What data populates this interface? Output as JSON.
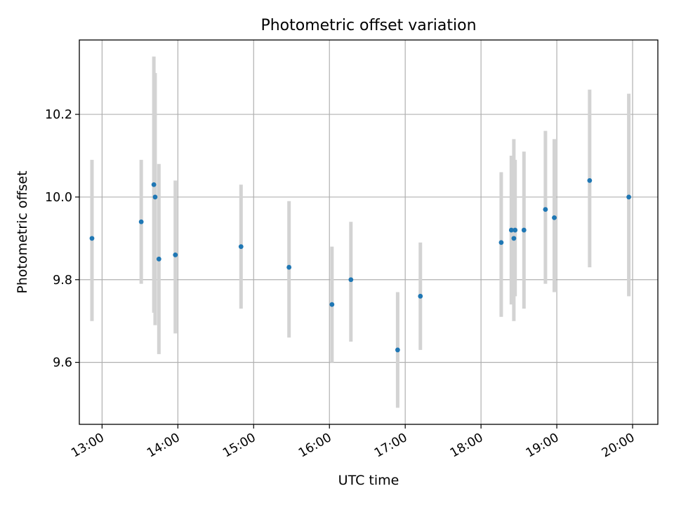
{
  "chart_data": {
    "type": "scatter",
    "title": "Photometric offset variation",
    "xlabel": "UTC time",
    "ylabel": "Photometric offset",
    "x_axis_type": "time",
    "xlim": [
      "12:42",
      "20:20"
    ],
    "ylim": [
      9.45,
      10.38
    ],
    "xticks": [
      "13:00",
      "14:00",
      "15:00",
      "16:00",
      "17:00",
      "18:00",
      "19:00",
      "20:00"
    ],
    "yticks": [
      "9.6",
      "9.8",
      "10.0",
      "10.2"
    ],
    "grid": true,
    "legend": "none",
    "point_color": "#1f77b4",
    "errorbar_color": "#d3d3d3",
    "points": [
      {
        "x": "12:52",
        "y": 9.9,
        "ylow": 9.7,
        "yhigh": 10.09
      },
      {
        "x": "13:31",
        "y": 9.94,
        "ylow": 9.79,
        "yhigh": 10.09
      },
      {
        "x": "13:41",
        "y": 10.03,
        "ylow": 9.72,
        "yhigh": 10.34
      },
      {
        "x": "13:42",
        "y": 10.0,
        "ylow": 9.69,
        "yhigh": 10.3
      },
      {
        "x": "13:45",
        "y": 9.85,
        "ylow": 9.62,
        "yhigh": 10.08
      },
      {
        "x": "13:58",
        "y": 9.86,
        "ylow": 9.67,
        "yhigh": 10.04
      },
      {
        "x": "14:50",
        "y": 9.88,
        "ylow": 9.73,
        "yhigh": 10.03
      },
      {
        "x": "15:28",
        "y": 9.83,
        "ylow": 9.66,
        "yhigh": 9.99
      },
      {
        "x": "16:02",
        "y": 9.74,
        "ylow": 9.6,
        "yhigh": 9.88
      },
      {
        "x": "16:17",
        "y": 9.8,
        "ylow": 9.65,
        "yhigh": 9.94
      },
      {
        "x": "16:54",
        "y": 9.63,
        "ylow": 9.49,
        "yhigh": 9.77
      },
      {
        "x": "17:12",
        "y": 9.76,
        "ylow": 9.63,
        "yhigh": 9.89
      },
      {
        "x": "18:16",
        "y": 9.89,
        "ylow": 9.71,
        "yhigh": 10.06
      },
      {
        "x": "18:24",
        "y": 9.92,
        "ylow": 9.74,
        "yhigh": 10.1
      },
      {
        "x": "18:26",
        "y": 9.9,
        "ylow": 9.7,
        "yhigh": 10.14
      },
      {
        "x": "18:27",
        "y": 9.92,
        "ylow": 9.76,
        "yhigh": 10.09
      },
      {
        "x": "18:34",
        "y": 9.92,
        "ylow": 9.73,
        "yhigh": 10.11
      },
      {
        "x": "18:51",
        "y": 9.97,
        "ylow": 9.79,
        "yhigh": 10.16
      },
      {
        "x": "18:58",
        "y": 9.95,
        "ylow": 9.77,
        "yhigh": 10.14
      },
      {
        "x": "19:26",
        "y": 10.04,
        "ylow": 9.83,
        "yhigh": 10.26
      },
      {
        "x": "19:57",
        "y": 10.0,
        "ylow": 9.76,
        "yhigh": 10.25
      }
    ]
  }
}
